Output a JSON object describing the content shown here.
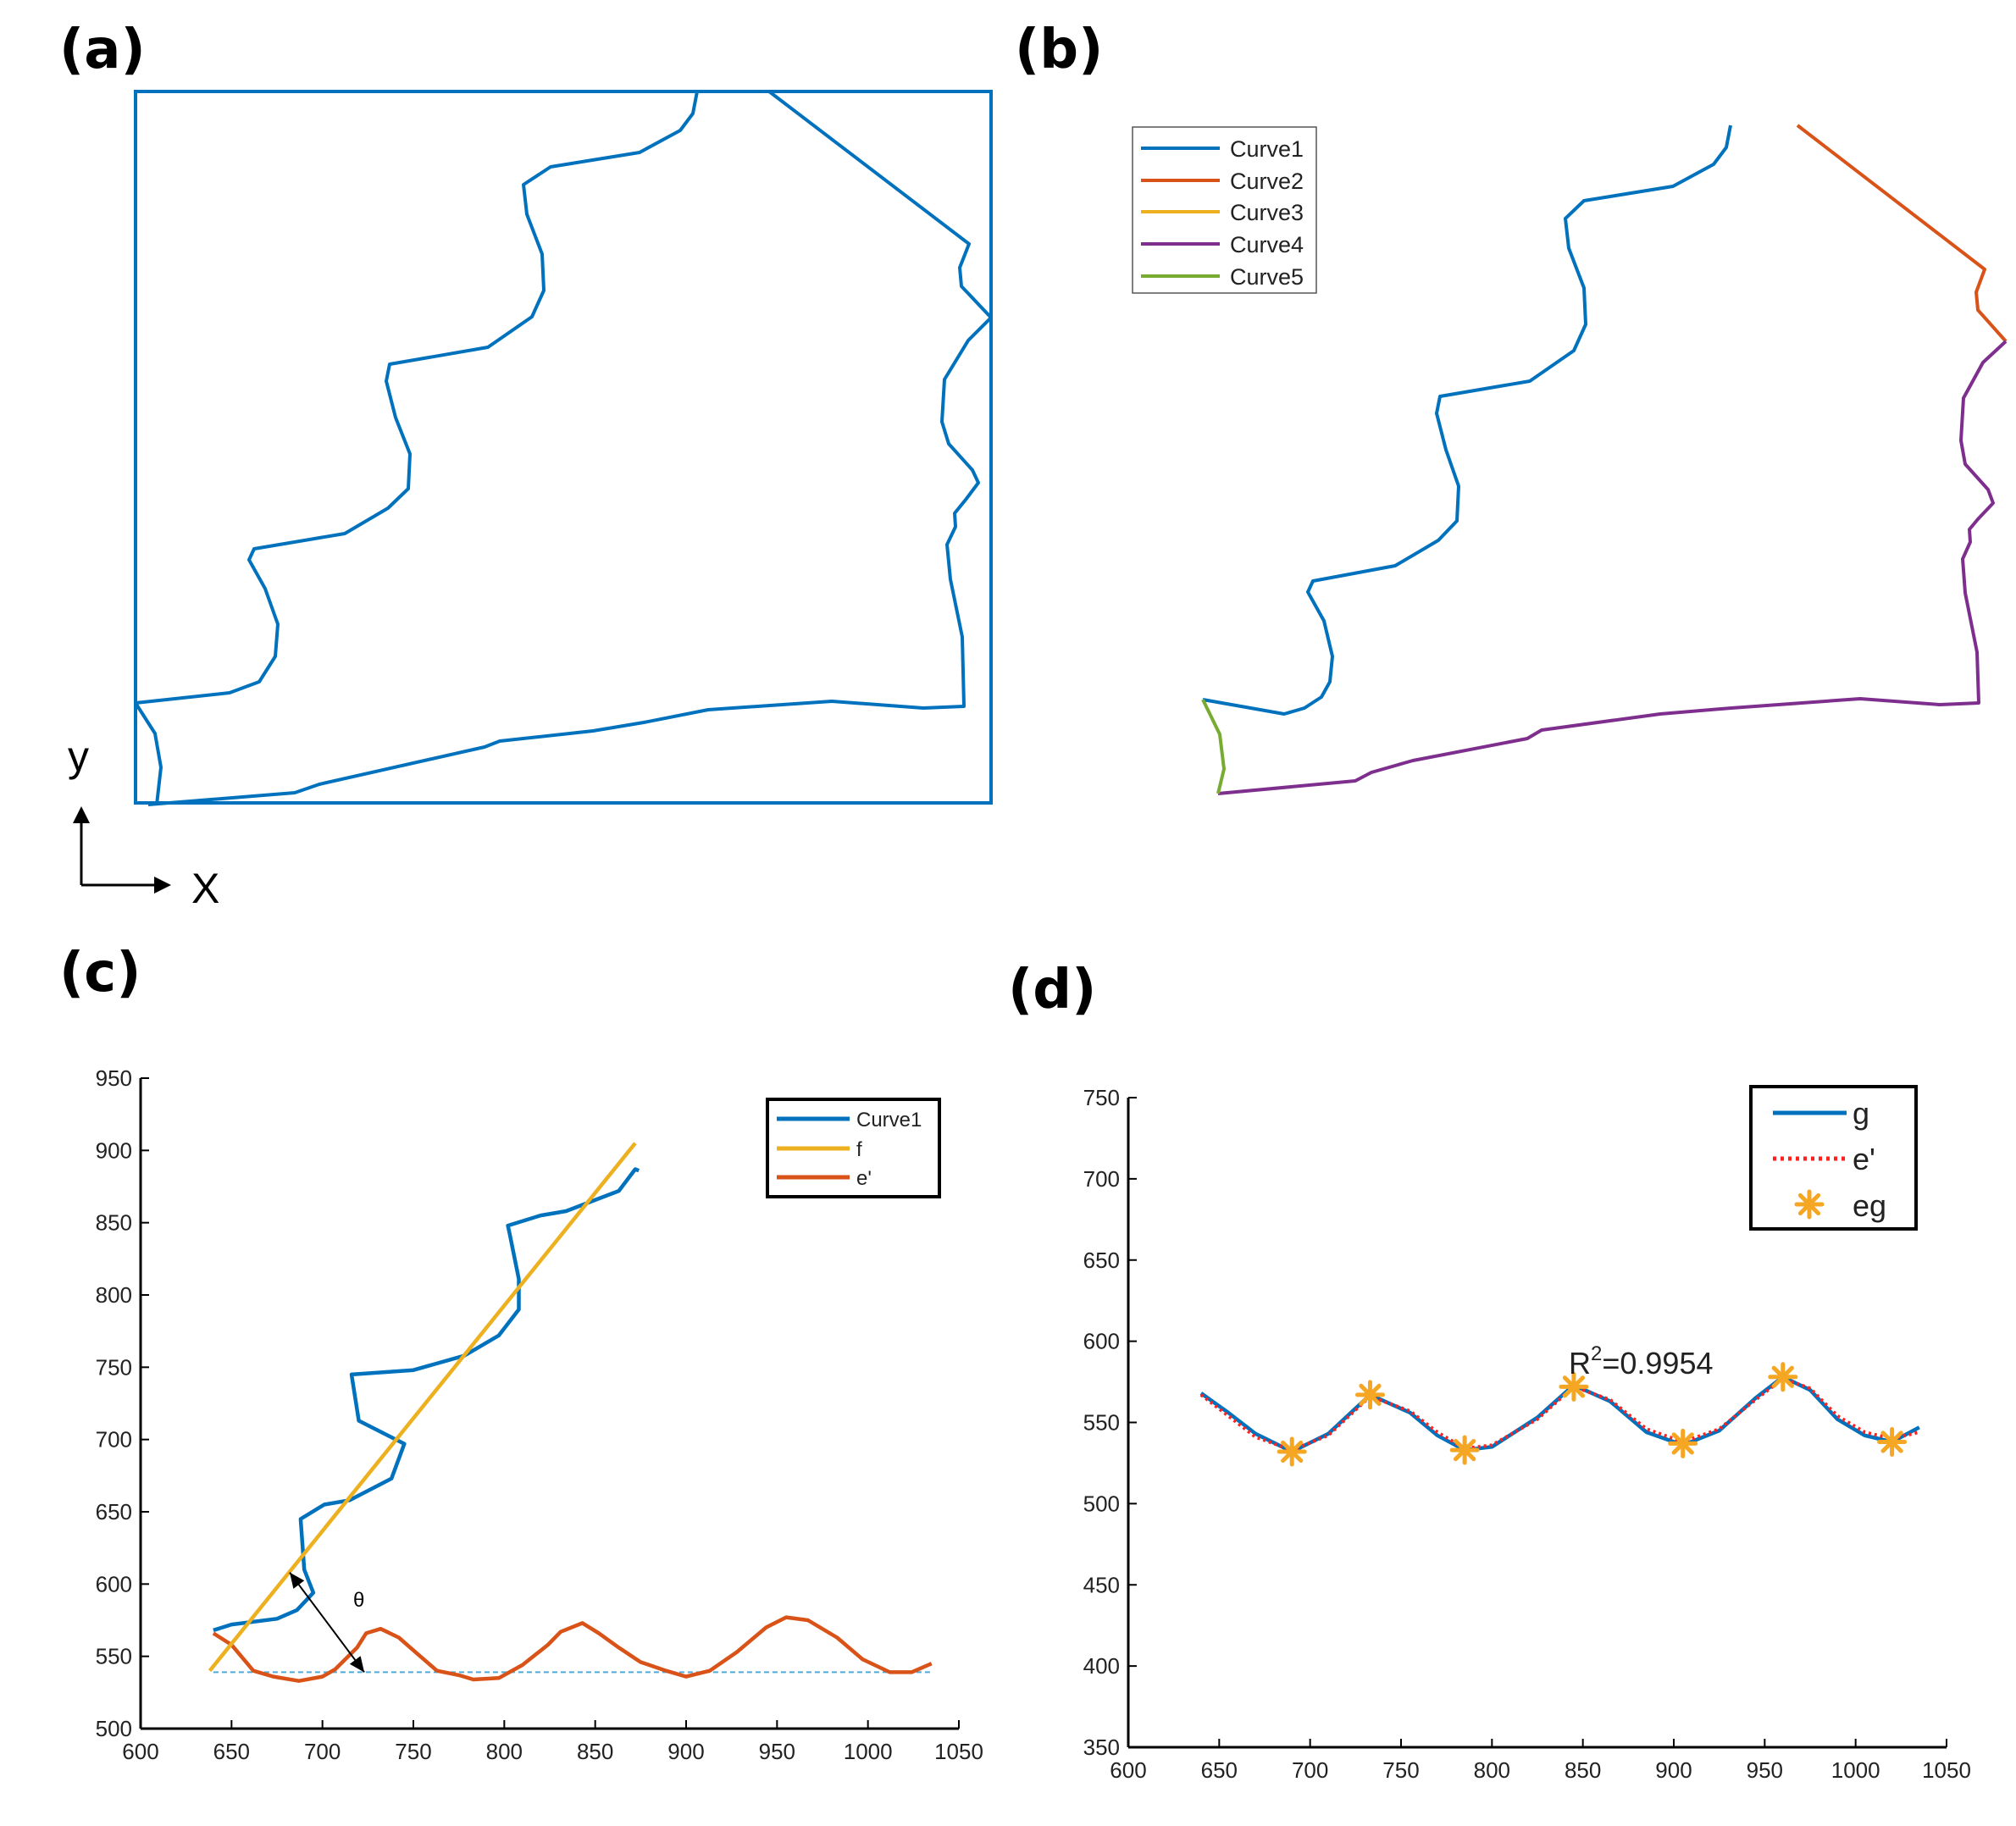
{
  "panels": {
    "a": {
      "label": "(a)",
      "axis_y": "y",
      "axis_x": "X"
    },
    "b": {
      "label": "(b)",
      "legend": [
        "Curve1",
        "Curve2",
        "Curve3",
        "Curve4",
        "Curve5"
      ]
    },
    "c": {
      "label": "(c)",
      "legend": [
        "Curve1",
        "f",
        "e'"
      ],
      "angle_label": "θ"
    },
    "d": {
      "label": "(d)",
      "legend": [
        "g",
        "e'",
        "eg"
      ],
      "r2_base": "R",
      "r2_sup": "2",
      "r2_value": "=0.9954"
    }
  },
  "colors": {
    "curve1": "#0072BD",
    "curve2": "#D95319",
    "curve3": "#EDB120",
    "curve4": "#7E2F8E",
    "curve5": "#77AC30",
    "dashed": "#4FA9D8",
    "red_dot": "#FF2020",
    "star": "#F5A623"
  },
  "chart_data": [
    {
      "id": "c",
      "type": "line",
      "xlim": [
        600,
        1050
      ],
      "ylim": [
        500,
        950
      ],
      "xticks": [
        600,
        650,
        700,
        750,
        800,
        850,
        900,
        950,
        1000,
        1050
      ],
      "yticks": [
        500,
        550,
        600,
        650,
        700,
        750,
        800,
        850,
        900,
        950
      ],
      "series": [
        {
          "name": "Curve1",
          "x": [
            640,
            650,
            675,
            686,
            695,
            690,
            688,
            701,
            715,
            738,
            745,
            720,
            716,
            750,
            778,
            797,
            808,
            808,
            803,
            802,
            820,
            834,
            863,
            872,
            874
          ],
          "y": [
            568,
            572,
            576,
            582,
            594,
            610,
            645,
            655,
            658,
            673,
            697,
            713,
            745,
            748,
            758,
            772,
            790,
            811,
            842,
            848,
            855,
            858,
            872,
            887,
            886
          ]
        },
        {
          "name": "f",
          "x": [
            638,
            872
          ],
          "y": [
            540,
            905
          ]
        },
        {
          "name": "e'",
          "x": [
            640,
            650,
            662,
            673,
            687,
            700,
            707,
            719,
            724,
            732,
            742,
            752,
            763,
            775,
            783,
            797,
            810,
            824,
            831,
            843,
            852,
            863,
            875,
            889,
            900,
            913,
            928,
            944,
            955,
            967,
            983,
            997,
            1012,
            1024,
            1035
          ],
          "y": [
            566,
            558,
            540,
            536,
            533,
            536,
            541,
            556,
            566,
            569,
            563,
            552,
            540,
            537,
            534,
            535,
            544,
            558,
            567,
            573,
            566,
            556,
            546,
            540,
            536,
            540,
            553,
            570,
            577,
            575,
            563,
            548,
            539,
            539,
            545
          ]
        },
        {
          "name": "baseline",
          "x": [
            640,
            1035
          ],
          "y": [
            539,
            539
          ]
        }
      ],
      "arrow": {
        "from": [
          682,
          608
        ],
        "to": [
          723,
          539
        ]
      }
    },
    {
      "id": "d",
      "type": "line",
      "xlim": [
        600,
        1050
      ],
      "ylim": [
        350,
        750
      ],
      "xticks": [
        600,
        650,
        700,
        750,
        800,
        850,
        900,
        950,
        1000,
        1050
      ],
      "yticks": [
        350,
        400,
        450,
        500,
        550,
        600,
        650,
        700,
        750
      ],
      "series": [
        {
          "name": "g",
          "x": [
            640,
            655,
            670,
            690,
            710,
            733,
            755,
            770,
            785,
            800,
            825,
            845,
            865,
            885,
            905,
            925,
            945,
            960,
            975,
            990,
            1005,
            1020,
            1035
          ],
          "y": [
            568,
            556,
            543,
            532,
            543,
            567,
            556,
            542,
            533,
            535,
            553,
            573,
            563,
            544,
            536,
            545,
            565,
            578,
            570,
            552,
            542,
            538,
            547
          ]
        },
        {
          "name": "e'",
          "x": [
            640,
            655,
            670,
            690,
            710,
            733,
            755,
            770,
            785,
            800,
            825,
            845,
            865,
            885,
            905,
            925,
            945,
            960,
            975,
            990,
            1005,
            1020,
            1035
          ],
          "y": [
            567,
            554,
            541,
            533,
            542,
            566,
            557,
            544,
            534,
            536,
            552,
            572,
            564,
            546,
            538,
            546,
            564,
            577,
            571,
            554,
            544,
            540,
            544
          ]
        },
        {
          "name": "eg",
          "x": [
            690,
            733,
            785,
            845,
            905,
            960,
            1020
          ],
          "y": [
            532,
            567,
            533,
            572,
            537,
            578,
            538
          ]
        }
      ],
      "annotation": {
        "x": 845,
        "y": 580
      }
    }
  ]
}
